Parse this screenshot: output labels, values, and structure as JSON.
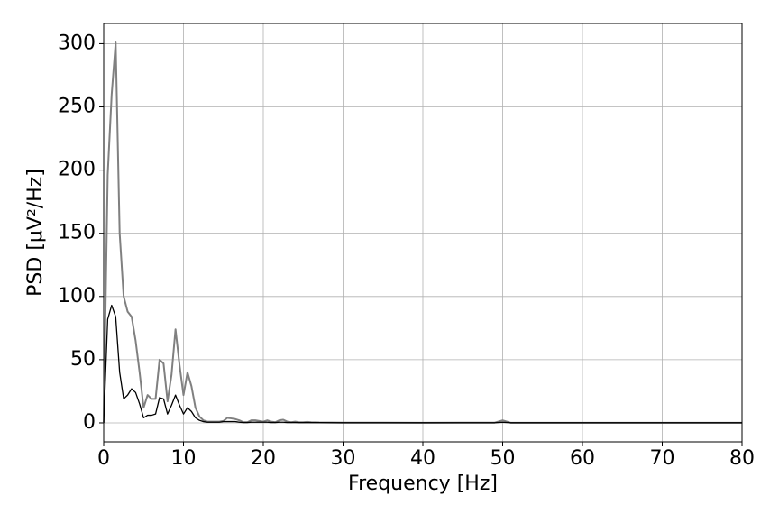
{
  "chart_data": {
    "type": "line",
    "xlabel": "Frequency [Hz]",
    "ylabel": "PSD [μV²/Hz]",
    "x": [
      0,
      0.5,
      1,
      1.5,
      2,
      2.5,
      3,
      3.5,
      4,
      4.5,
      5,
      5.5,
      6,
      6.5,
      7,
      7.5,
      8,
      8.5,
      9,
      9.5,
      10,
      10.5,
      11,
      11.5,
      12,
      12.5,
      13,
      13.5,
      14,
      14.5,
      15,
      15.5,
      16,
      16.5,
      17,
      17.5,
      18,
      18.5,
      19,
      19.5,
      20,
      20.5,
      21,
      21.5,
      22,
      22.5,
      23,
      23.5,
      24,
      24.5,
      25,
      25.5,
      26,
      27,
      30,
      35,
      40,
      49,
      50,
      51,
      60,
      70,
      80
    ],
    "series": [
      {
        "color": "#808080",
        "values": [
          0,
          196,
          260,
          301,
          150,
          100,
          88,
          84,
          65,
          40,
          12,
          22,
          19,
          19,
          50,
          47,
          17,
          38,
          74,
          46,
          22,
          40,
          29,
          12,
          5,
          2,
          1,
          1,
          1,
          1,
          1.5,
          4,
          3.5,
          3,
          2,
          0.5,
          0.5,
          2,
          2,
          1.5,
          1,
          2,
          1,
          0.5,
          2,
          2.5,
          1,
          0.5,
          1,
          0.5,
          0.5,
          0.8,
          0.5,
          0.3,
          0.2,
          0.2,
          0.1,
          0.2,
          2,
          0.1,
          0.1,
          0.1,
          0.1
        ]
      },
      {
        "color": "#000000",
        "values": [
          0,
          82,
          93,
          84,
          40,
          19,
          22,
          27,
          24,
          15,
          4,
          6,
          6,
          7,
          20,
          19,
          7,
          14,
          22,
          14,
          7,
          12,
          9,
          4,
          2,
          1,
          0.5,
          0.5,
          0.5,
          0.5,
          1,
          1,
          1,
          1,
          0.5,
          0.3,
          0.3,
          0.5,
          0.5,
          0.5,
          0.5,
          0.5,
          0.3,
          0.3,
          0.5,
          0.5,
          0.3,
          0.3,
          0.3,
          0.2,
          0.2,
          0.2,
          0.2,
          0.2,
          0.1,
          0.1,
          0.1,
          0.1,
          0.5,
          0.1,
          0.1,
          0.1,
          0.1
        ]
      }
    ],
    "xlim": [
      0,
      80
    ],
    "xticks": [
      0,
      10,
      20,
      30,
      40,
      50,
      60,
      70,
      80
    ],
    "ylim": [
      -15,
      316
    ],
    "yticks": [
      0,
      50,
      100,
      150,
      200,
      250,
      300
    ],
    "grid": true
  }
}
